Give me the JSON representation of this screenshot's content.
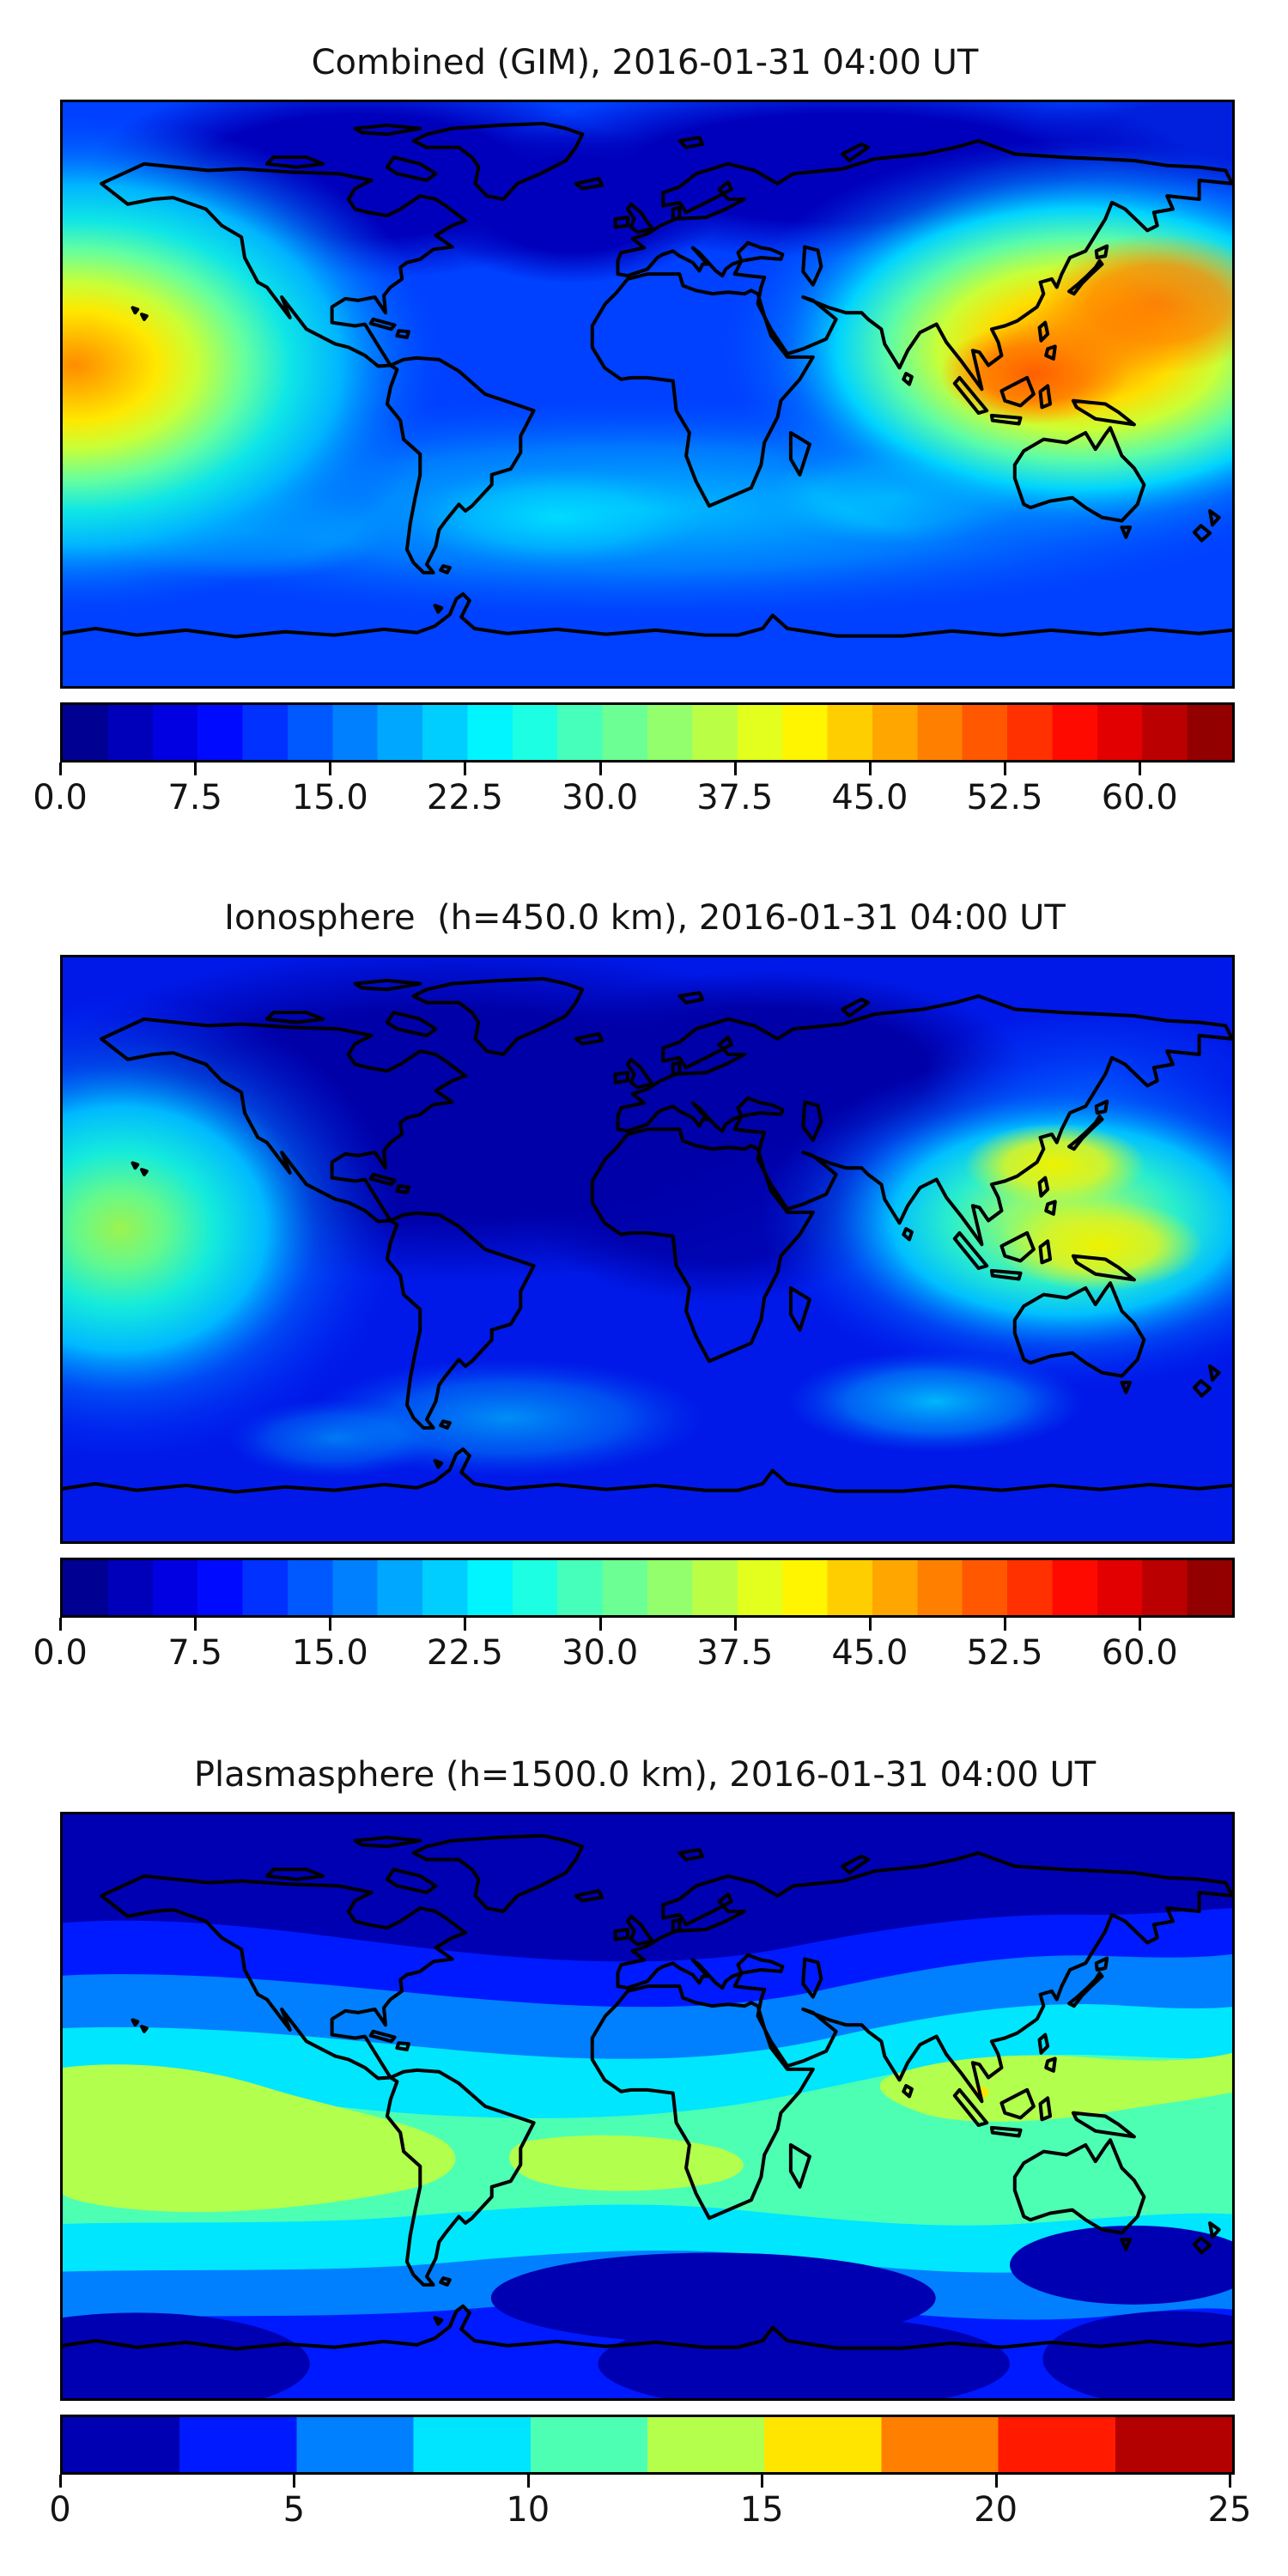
{
  "figure": {
    "background": "#ffffff",
    "coastline_color": "#000000",
    "frame_color": "#000000",
    "colormap": "jet"
  },
  "panels": [
    {
      "id": "combined-gim",
      "title": "Combined (GIM), 2016-01-31 04:00 UT",
      "colorbar": {
        "min": 0,
        "max": 65,
        "segments": 26,
        "segment_step": 2.5,
        "tick_values": [
          0,
          7.5,
          15,
          22.5,
          30,
          37.5,
          45,
          52.5,
          60
        ],
        "tick_labels": [
          "0.0",
          "7.5",
          "15.0",
          "22.5",
          "30.0",
          "37.5",
          "45.0",
          "52.5",
          "60.0"
        ]
      }
    },
    {
      "id": "ionosphere",
      "title": "Ionosphere  (h=450.0 km), 2016-01-31 04:00 UT",
      "colorbar": {
        "min": 0,
        "max": 65,
        "segments": 26,
        "segment_step": 2.5,
        "tick_values": [
          0,
          7.5,
          15,
          22.5,
          30,
          37.5,
          45,
          52.5,
          60
        ],
        "tick_labels": [
          "0.0",
          "7.5",
          "15.0",
          "22.5",
          "30.0",
          "37.5",
          "45.0",
          "52.5",
          "60.0"
        ]
      }
    },
    {
      "id": "plasmasphere",
      "title": "Plasmasphere (h=1500.0 km), 2016-01-31 04:00 UT",
      "colorbar": {
        "min": 0,
        "max": 25,
        "segments": 10,
        "segment_step": 2.5,
        "tick_values": [
          0,
          5,
          10,
          15,
          20,
          25
        ],
        "tick_labels": [
          "0",
          "5",
          "10",
          "15",
          "20",
          "25"
        ]
      }
    }
  ],
  "chart_data": [
    {
      "type": "heatmap",
      "subtype": "filled-contour-world-map",
      "title": "Combined (GIM), 2016-01-31 04:00 UT",
      "projection": "equirectangular",
      "lon_range": [
        -180,
        180
      ],
      "lat_range": [
        -90,
        90
      ],
      "colormap": "jet",
      "value_range": [
        0,
        65
      ],
      "contour_step": 2.5,
      "colorbar_ticks": [
        0,
        7.5,
        15,
        22.5,
        30,
        37.5,
        45,
        52.5,
        60
      ],
      "legend_position": "bottom",
      "grid": false,
      "features": [
        {
          "name": "west-pacific-equatorial-peak",
          "lon": -160,
          "lat": 15,
          "approx_value": 48
        },
        {
          "name": "southeast-asia-oceania-peak",
          "lon": 137,
          "lat": 8,
          "approx_value": 52
        },
        {
          "name": "philippine-sea-secondary-core",
          "lon": 125,
          "lat": 12,
          "approx_value": 50
        },
        {
          "name": "high-northern-latitude-minimum",
          "lon": -80,
          "lat": 65,
          "approx_value": 5
        },
        {
          "name": "southern-midlatitude-band",
          "lat": -35,
          "approx_value": 22
        }
      ]
    },
    {
      "type": "heatmap",
      "subtype": "filled-contour-world-map",
      "title": "Ionosphere  (h=450.0 km), 2016-01-31 04:00 UT",
      "projection": "equirectangular",
      "lon_range": [
        -180,
        180
      ],
      "lat_range": [
        -90,
        90
      ],
      "colormap": "jet",
      "value_range": [
        0,
        65
      ],
      "contour_step": 2.5,
      "colorbar_ticks": [
        0,
        7.5,
        15,
        22.5,
        30,
        37.5,
        45,
        52.5,
        60
      ],
      "legend_position": "bottom",
      "grid": false,
      "features": [
        {
          "name": "west-pacific-equatorial-peak",
          "lon": -162,
          "lat": 10,
          "approx_value": 36
        },
        {
          "name": "philippine-sea-peak",
          "lon": 138,
          "lat": 18,
          "approx_value": 38
        },
        {
          "name": "coral-sea-peak",
          "lon": 150,
          "lat": -5,
          "approx_value": 38
        },
        {
          "name": "north-america-atlantic-minimum",
          "lon": -60,
          "lat": 45,
          "approx_value": 3
        },
        {
          "name": "southern-midlatitude-cyan-band",
          "lat": -45,
          "approx_value": 20
        }
      ]
    },
    {
      "type": "heatmap",
      "subtype": "filled-contour-world-map",
      "title": "Plasmasphere (h=1500.0 km), 2016-01-31 04:00 UT",
      "projection": "equirectangular",
      "lon_range": [
        -180,
        180
      ],
      "lat_range": [
        -90,
        90
      ],
      "colormap": "jet",
      "value_range": [
        0,
        25
      ],
      "contour_step": 2.5,
      "colorbar_ticks": [
        0,
        5,
        10,
        15,
        20,
        25
      ],
      "legend_position": "bottom",
      "grid": false,
      "features": [
        {
          "name": "equatorial-band",
          "lat": 0,
          "approx_value": 11
        },
        {
          "name": "south-america-east-pacific-patch",
          "lon": -150,
          "lat": -15,
          "approx_value": 14
        },
        {
          "name": "south-atlantic-patch",
          "lon": -25,
          "lat": -15,
          "approx_value": 14
        },
        {
          "name": "indonesia-philippines-patch",
          "lon": 120,
          "lat": 5,
          "approx_value": 15
        },
        {
          "name": "polar-minima",
          "lat": 75,
          "approx_value": 1.5
        }
      ]
    }
  ]
}
